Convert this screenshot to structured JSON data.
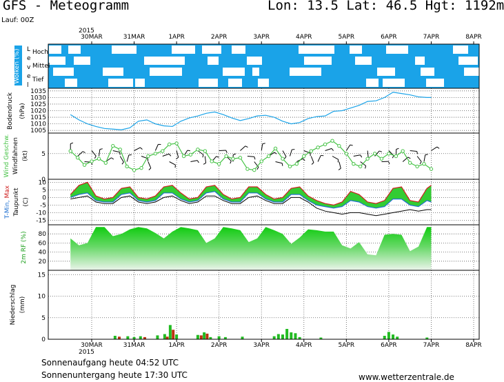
{
  "header": {
    "title": "GFS  -  Meteogramm",
    "coords": "Lon: 13.5  Lat: 46.5  Hgt: 1192m",
    "run": "Lauf: 00Z"
  },
  "footer": {
    "sunrise": "Sonnenaufgang heute 04:52 UTC",
    "sunset": "Sonnenuntergang heute 17:30 UTC",
    "site": "www.wetterzentrale.de"
  },
  "colors": {
    "cloud_sky": "#1aa3e8",
    "pressure_line": "#1aa3e8",
    "wind_line": "#44c244",
    "temp_max": "#d02020",
    "temp_min": "#2070d0",
    "dewpoint": "#000000",
    "humidity_fill": "#22cc22",
    "precip_green": "#22bb22",
    "precip_red": "#bb3311"
  },
  "chart_data": [
    {
      "type": "heatmap",
      "panel": "wolken",
      "ylabel": "Wolken (%)",
      "side_label": "Level",
      "levels": [
        "Hoch",
        "Mittel",
        "Tief"
      ],
      "x_axis": {
        "year": "2015",
        "tick_labels": [
          "30MAR",
          "31MAR",
          "1APR",
          "2APR",
          "3APR",
          "4APR",
          "5APR",
          "6APR",
          "7APR",
          "8APR"
        ]
      }
    },
    {
      "type": "line",
      "panel": "bodendruck",
      "ylabel": "Bodendruck",
      "unit": "(hPa)",
      "yticks": [
        1005,
        1010,
        1015,
        1020,
        1025,
        1030,
        1035
      ],
      "ylim": [
        1003,
        1037
      ],
      "x": [
        -0.5,
        -0.3,
        -0.1,
        0.1,
        0.3,
        0.5,
        0.7,
        0.9,
        1.1,
        1.3,
        1.5,
        1.7,
        1.9,
        2.1,
        2.3,
        2.5,
        2.7,
        2.9,
        3.1,
        3.3,
        3.5,
        3.7,
        3.9,
        4.1,
        4.3,
        4.5,
        4.7,
        4.9,
        5.1,
        5.3,
        5.5,
        5.7,
        5.9,
        6.1,
        6.3,
        6.5,
        6.7,
        6.9,
        7.1,
        7.3,
        7.5,
        7.7,
        7.9,
        8.0
      ],
      "values": [
        1017,
        1013,
        1010,
        1008,
        1006.5,
        1006,
        1005.5,
        1007,
        1012,
        1013,
        1010,
        1008.5,
        1008,
        1012,
        1014.5,
        1016,
        1018,
        1019,
        1017,
        1014.5,
        1012.5,
        1014,
        1016,
        1016.5,
        1015,
        1012,
        1010,
        1011,
        1014,
        1015.5,
        1016,
        1019.5,
        1020,
        1022,
        1024,
        1027,
        1027.5,
        1030,
        1034,
        1033,
        1032,
        1030.5,
        1030,
        1030
      ]
    },
    {
      "type": "line",
      "panel": "wind",
      "ylabel": "Wind Geschw.",
      "ylabel2": "Windfahnen",
      "unit": "(kt)",
      "yticks": [
        0,
        5
      ],
      "ylim": [
        0,
        9
      ],
      "x": [
        -0.5,
        -0.33,
        -0.17,
        0.0,
        0.17,
        0.33,
        0.5,
        0.67,
        0.83,
        1.0,
        1.17,
        1.33,
        1.5,
        1.67,
        1.83,
        2.0,
        2.17,
        2.33,
        2.5,
        2.67,
        2.83,
        3.0,
        3.17,
        3.33,
        3.5,
        3.67,
        3.83,
        4.0,
        4.17,
        4.33,
        4.5,
        4.67,
        4.83,
        5.0,
        5.17,
        5.33,
        5.5,
        5.67,
        5.83,
        6.0,
        6.17,
        6.33,
        6.5,
        6.67,
        6.83,
        7.0,
        7.17,
        7.33,
        7.5,
        7.67,
        7.83,
        8.0
      ],
      "values": [
        5.5,
        4.2,
        2.8,
        3.5,
        4.0,
        3.2,
        6.5,
        5.8,
        2.5,
        1.8,
        2.2,
        4.5,
        5.0,
        5.5,
        6.8,
        7.0,
        4.5,
        4.8,
        5.8,
        5.5,
        3.5,
        3.0,
        4.5,
        4.0,
        4.2,
        2.0,
        1.8,
        3.5,
        4.5,
        6.0,
        4.0,
        2.5,
        3.0,
        4.5,
        5.5,
        6.2,
        6.8,
        7.5,
        6.5,
        5.0,
        3.0,
        2.5,
        4.0,
        5.0,
        4.0,
        5.0,
        4.5,
        5.5,
        3.2,
        2.5,
        3.0,
        2.0
      ]
    },
    {
      "type": "line",
      "panel": "temperatur",
      "ylabel": "T-Min, Max",
      "ylabel2": "Taupunkt",
      "unit": "(C)",
      "yticks": [
        -15,
        -10,
        -5,
        0,
        5,
        10
      ],
      "ylim": [
        -18,
        12
      ],
      "x": [
        -0.5,
        -0.3,
        -0.1,
        0.1,
        0.3,
        0.5,
        0.7,
        0.9,
        1.1,
        1.3,
        1.5,
        1.7,
        1.9,
        2.1,
        2.3,
        2.5,
        2.7,
        2.9,
        3.1,
        3.3,
        3.5,
        3.7,
        3.9,
        4.1,
        4.3,
        4.5,
        4.7,
        4.9,
        5.1,
        5.3,
        5.5,
        5.7,
        5.9,
        6.1,
        6.3,
        6.5,
        6.7,
        6.9,
        7.1,
        7.3,
        7.5,
        7.7,
        7.9,
        8.0
      ],
      "tmax": [
        2,
        8,
        10,
        1,
        -1,
        0,
        6,
        7,
        0,
        -1,
        1,
        7,
        8,
        3,
        -1,
        0,
        7,
        8,
        2,
        -1,
        0,
        7,
        7,
        2,
        -1,
        0,
        6,
        7,
        1,
        -2,
        -4,
        -5,
        -3,
        4,
        2,
        -3,
        -4,
        -2,
        6,
        7,
        -2,
        -3,
        6,
        8
      ],
      "tmin": [
        0,
        2,
        3,
        -2,
        -3,
        -3,
        2,
        3,
        -2,
        -3,
        -2,
        3,
        3,
        -1,
        -3,
        -2,
        3,
        4,
        -1,
        -3,
        -3,
        3,
        3,
        -1,
        -3,
        -3,
        2,
        2,
        -2,
        -5,
        -6,
        -7,
        -6,
        -2,
        -3,
        -6,
        -7,
        -6,
        -1,
        -1,
        -5,
        -6,
        -2,
        -3
      ],
      "dewpoint": [
        -1,
        0,
        1,
        -3,
        -4,
        -4,
        0,
        1,
        -3,
        -4,
        -3,
        0,
        1,
        -2,
        -4,
        -3,
        1,
        1,
        -2,
        -4,
        -4,
        0,
        1,
        -2,
        -4,
        -4,
        0,
        0,
        -3,
        -7,
        -9,
        -10,
        -11,
        -10,
        -10,
        -11,
        -12,
        -11,
        -10,
        -9,
        -8,
        -9,
        -8,
        -8
      ]
    },
    {
      "type": "area",
      "panel": "feuchte",
      "ylabel": "2m RF (%)",
      "yticks": [
        20,
        40,
        60,
        80
      ],
      "ylim": [
        0,
        100
      ],
      "x": [
        -0.5,
        -0.3,
        -0.1,
        0.1,
        0.3,
        0.5,
        0.7,
        0.9,
        1.1,
        1.3,
        1.5,
        1.7,
        1.9,
        2.1,
        2.3,
        2.5,
        2.7,
        2.9,
        3.1,
        3.3,
        3.5,
        3.7,
        3.9,
        4.1,
        4.3,
        4.5,
        4.7,
        4.9,
        5.1,
        5.3,
        5.5,
        5.7,
        5.9,
        6.1,
        6.3,
        6.5,
        6.7,
        6.9,
        7.1,
        7.3,
        7.5,
        7.7,
        7.9,
        8.0
      ],
      "values": [
        70,
        55,
        60,
        95,
        95,
        75,
        80,
        90,
        95,
        92,
        82,
        70,
        85,
        95,
        92,
        88,
        60,
        70,
        95,
        92,
        88,
        62,
        70,
        95,
        88,
        80,
        58,
        72,
        90,
        88,
        85,
        85,
        55,
        48,
        62,
        35,
        33,
        78,
        80,
        78,
        42,
        52,
        95,
        95
      ]
    },
    {
      "type": "bar",
      "panel": "niederschlag",
      "ylabel": "Niederschlag",
      "unit": "(mm)",
      "yticks": [
        0,
        5,
        10,
        15
      ],
      "ylim": [
        0,
        16
      ],
      "bars": [
        {
          "x": 0.55,
          "value": 0.8,
          "kind": "green"
        },
        {
          "x": 0.65,
          "value": 0.6,
          "kind": "red"
        },
        {
          "x": 0.85,
          "value": 0.7,
          "kind": "green"
        },
        {
          "x": 1.0,
          "value": 0.5,
          "kind": "green"
        },
        {
          "x": 1.15,
          "value": 0.7,
          "kind": "green"
        },
        {
          "x": 1.25,
          "value": 0.5,
          "kind": "red"
        },
        {
          "x": 1.55,
          "value": 0.9,
          "kind": "green"
        },
        {
          "x": 1.72,
          "value": 1.2,
          "kind": "green"
        },
        {
          "x": 1.78,
          "value": 0.6,
          "kind": "red"
        },
        {
          "x": 1.85,
          "value": 3.3,
          "kind": "green"
        },
        {
          "x": 1.92,
          "value": 2.2,
          "kind": "red"
        },
        {
          "x": 2.0,
          "value": 1.1,
          "kind": "green"
        },
        {
          "x": 2.5,
          "value": 1.0,
          "kind": "green"
        },
        {
          "x": 2.58,
          "value": 0.9,
          "kind": "red"
        },
        {
          "x": 2.65,
          "value": 1.6,
          "kind": "green"
        },
        {
          "x": 2.72,
          "value": 1.3,
          "kind": "red"
        },
        {
          "x": 2.8,
          "value": 0.5,
          "kind": "green"
        },
        {
          "x": 3.0,
          "value": 0.7,
          "kind": "green"
        },
        {
          "x": 3.15,
          "value": 0.5,
          "kind": "green"
        },
        {
          "x": 3.55,
          "value": 0.6,
          "kind": "green"
        },
        {
          "x": 4.3,
          "value": 0.7,
          "kind": "green"
        },
        {
          "x": 4.4,
          "value": 1.2,
          "kind": "green"
        },
        {
          "x": 4.5,
          "value": 1.1,
          "kind": "green"
        },
        {
          "x": 4.6,
          "value": 2.4,
          "kind": "green"
        },
        {
          "x": 4.7,
          "value": 1.6,
          "kind": "green"
        },
        {
          "x": 4.8,
          "value": 1.4,
          "kind": "green"
        },
        {
          "x": 4.9,
          "value": 0.5,
          "kind": "green"
        },
        {
          "x": 5.4,
          "value": 0.4,
          "kind": "green"
        },
        {
          "x": 6.9,
          "value": 0.8,
          "kind": "green"
        },
        {
          "x": 7.0,
          "value": 1.7,
          "kind": "green"
        },
        {
          "x": 7.1,
          "value": 1.1,
          "kind": "green"
        },
        {
          "x": 7.2,
          "value": 0.6,
          "kind": "green"
        },
        {
          "x": 7.9,
          "value": 0.4,
          "kind": "green"
        }
      ]
    }
  ]
}
